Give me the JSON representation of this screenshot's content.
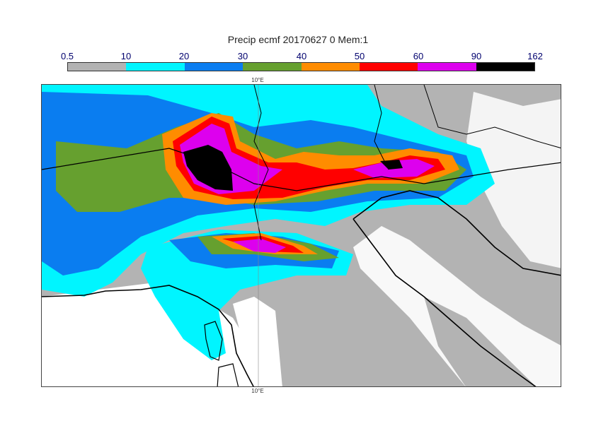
{
  "title": "Precip ecmf 20170627 0 Mem:1",
  "legend": {
    "labels": [
      "0.5",
      "10",
      "20",
      "30",
      "40",
      "50",
      "60",
      "90",
      "162"
    ],
    "colors": [
      "#b3b3b3",
      "#00f5ff",
      "#0a7df0",
      "#66a02f",
      "#ff8c00",
      "#ff0000",
      "#dd00ee",
      "#000000"
    ]
  },
  "map": {
    "lon_label_top": "10°E",
    "lon_label_bottom": "10°E",
    "ocean_color": "#ffffff",
    "coast_color": "#000000"
  }
}
